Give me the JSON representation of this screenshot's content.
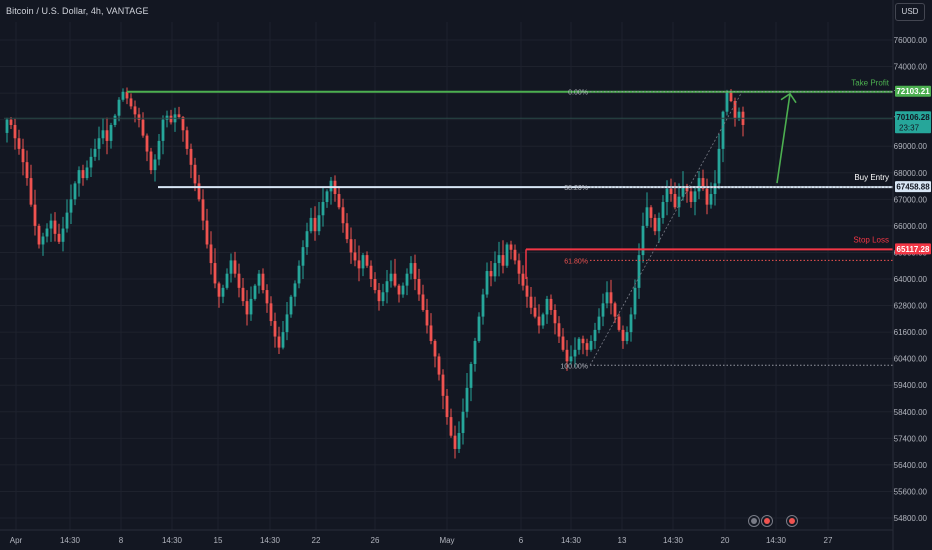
{
  "header": {
    "title": "Bitcoin / U.S. Dollar, 4h, VANTAGE",
    "currency": "USD"
  },
  "colors": {
    "background": "#131722",
    "up": "#26a69a",
    "down": "#ef5350",
    "take_profit": "#4caf50",
    "stop_loss": "#f23645",
    "buy_entry": "#d8e6f5",
    "grid": "#1e222d",
    "axis_text": "#b2b5be"
  },
  "chart_data": {
    "type": "candlestick",
    "symbol": "BTCUSD",
    "interval": "4h",
    "ylim": [
      54400,
      77200
    ],
    "y_ticks": [
      76000,
      74000,
      72000,
      70000,
      69000,
      68000,
      67000,
      66000,
      65000,
      64000,
      62800,
      61600,
      60400,
      59400,
      58400,
      57400,
      56400,
      55600,
      54800
    ],
    "x_ticks": [
      "Apr",
      "14:30",
      "8",
      "14:30",
      "15",
      "14:30",
      "22",
      "26",
      "May",
      "6",
      "14:30",
      "13",
      "14:30",
      "20",
      "14:30",
      "27"
    ],
    "levels": [
      {
        "name": "Take Profit",
        "price": "72103.21",
        "value": 72103.21
      },
      {
        "name": "Buy Entry",
        "price": "67458.88",
        "value": 67458.88
      },
      {
        "name": "Stop Loss",
        "price": "65117.28",
        "value": 65117.28
      }
    ],
    "last_price": {
      "price": "70106.28",
      "countdown": "23:37",
      "value": 70106.28
    },
    "fibonacci": [
      {
        "label": "0.00%",
        "value": 72103
      },
      {
        "label": "38.20%",
        "value": 67458
      },
      {
        "label": "61.80%",
        "value": 64700
      },
      {
        "label": "100.00%",
        "value": 60150
      }
    ],
    "price_path": [
      69500,
      70000,
      69800,
      69300,
      68900,
      68400,
      67800,
      66800,
      66000,
      65300,
      65600,
      65900,
      66200,
      65700,
      65400,
      65900,
      66500,
      67000,
      67600,
      68100,
      67800,
      68200,
      68600,
      68900,
      69300,
      69600,
      69200,
      69800,
      70300,
      71500,
      72100,
      71600,
      71000,
      70400,
      70000,
      69400,
      68800,
      68100,
      68500,
      69200,
      70000,
      70300,
      69900,
      70400,
      70200,
      69600,
      68900,
      68300,
      67600,
      67000,
      66200,
      65300,
      64600,
      63800,
      63200,
      63600,
      64200,
      64700,
      64200,
      63600,
      63000,
      62400,
      63100,
      63700,
      64200,
      63500,
      62900,
      62100,
      61400,
      60900,
      61600,
      62400,
      63200,
      63800,
      64500,
      65200,
      65800,
      66300,
      65800,
      66400,
      66900,
      67300,
      67700,
      67200,
      66700,
      66100,
      65500,
      65000,
      64700,
      64400,
      64900,
      64500,
      64000,
      63500,
      63000,
      63400,
      63900,
      64200,
      63700,
      63300,
      63700,
      64200,
      64600,
      64000,
      63300,
      62600,
      61900,
      61200,
      60500,
      59800,
      59000,
      58200,
      57500,
      57000,
      57600,
      58400,
      59300,
      60200,
      61200,
      62300,
      63300,
      64300,
      64100,
      64600,
      64900,
      64500,
      65300,
      65100,
      64700,
      64200,
      63700,
      63200,
      62700,
      62300,
      61900,
      62400,
      63100,
      62600,
      62000,
      61400,
      60800,
      60300,
      60500,
      60800,
      61300,
      61100,
      60800,
      61200,
      61700,
      62300,
      62900,
      63400,
      62900,
      62300,
      61700,
      61200,
      61600,
      62400,
      63600,
      64900,
      66000,
      66700,
      66300,
      65800,
      66300,
      66900,
      67400,
      67200,
      66700,
      67100,
      67500,
      67300,
      66900,
      67300,
      67800,
      67400,
      66800,
      67200,
      67600,
      68900,
      70600,
      72100,
      71400,
      70100,
      70600,
      69800
    ]
  }
}
